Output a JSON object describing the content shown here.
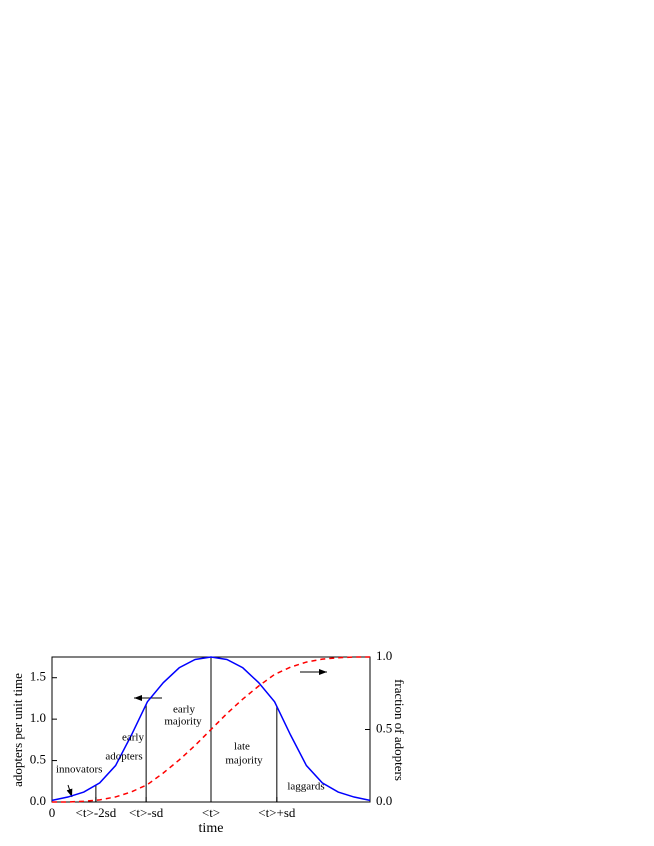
{
  "chart_data": {
    "type": "line",
    "xlabel": "time",
    "ylabel": "adopters per unit time",
    "y2label": "fraction of adopters",
    "x": [
      0,
      0.5,
      1,
      1.5,
      2,
      2.5,
      3,
      3.5,
      4,
      4.5,
      5,
      5.5,
      6,
      6.5,
      7,
      7.5,
      8,
      8.5,
      9,
      9.5,
      10
    ],
    "series": [
      {
        "color": "#0000ff",
        "dash": "solid",
        "values": [
          0.02,
          0.06,
          0.12,
          0.23,
          0.44,
          0.81,
          1.21,
          1.44,
          1.62,
          1.72,
          1.75,
          1.72,
          1.62,
          1.44,
          1.21,
          0.81,
          0.44,
          0.23,
          0.12,
          0.06,
          0.02
        ]
      },
      {
        "color": "#ff0000",
        "dash": "dashed",
        "axis": "y2",
        "values": [
          0,
          0,
          0.005,
          0.015,
          0.035,
          0.07,
          0.12,
          0.2,
          0.29,
          0.39,
          0.5,
          0.61,
          0.71,
          0.8,
          0.88,
          0.93,
          0.965,
          0.985,
          0.995,
          1,
          1
        ]
      }
    ],
    "xlim": [
      0,
      10
    ],
    "xticks": [
      0,
      {
        "value": 1.38,
        "label": "<t>-2sd"
      },
      {
        "value": 2.96,
        "label": "<t>-sd"
      },
      {
        "value": 5,
        "label": "<t>"
      },
      {
        "value": 7.07,
        "label": "<t>+sd"
      }
    ],
    "ylim": [
      0,
      1.75
    ],
    "yticks": [
      {
        "value": 0,
        "label": "0.0"
      },
      0.5,
      {
        "value": 1,
        "label": "1.0"
      },
      1.5
    ],
    "y2lim": [
      0,
      1
    ],
    "y2ticks": [
      {
        "value": 0,
        "label": "0.0"
      },
      0.5,
      {
        "value": 1,
        "label": "1.0"
      }
    ],
    "dividers": [
      1.38,
      2.96,
      5,
      7.07
    ],
    "annotations": [
      [
        "innovators"
      ],
      [
        "early",
        "adopters"
      ],
      [
        "early",
        "majority"
      ],
      [
        "late",
        "majority"
      ],
      [
        "laggards"
      ]
    ]
  }
}
